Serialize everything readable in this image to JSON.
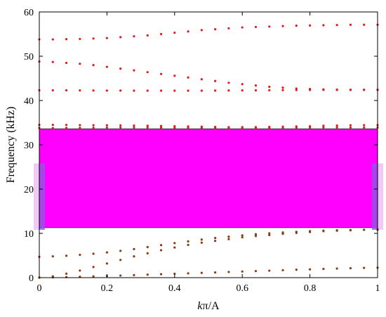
{
  "chart_data": {
    "type": "scatter",
    "xlabel_italic": "k",
    "xlabel_rest": "π/A",
    "ylabel": "Frequency (kHz)",
    "xlim": [
      0,
      1
    ],
    "ylim": [
      0,
      60
    ],
    "xticks": [
      "0",
      "0.2",
      "0.4",
      "0.6",
      "0.8",
      "1"
    ],
    "yticks": [
      "0",
      "10",
      "20",
      "30",
      "40",
      "50",
      "60"
    ],
    "grid": false,
    "band_gap": {
      "ymin": 11.3,
      "ymax": 33.6,
      "color": "#ff00ff"
    },
    "side_bands": {
      "ymin": 10.8,
      "ymax": 25.8,
      "color": "#e6a6f0",
      "edge_color": "#8a5ce6"
    },
    "x_samples": [
      0,
      0.04,
      0.08,
      0.12,
      0.16,
      0.2,
      0.24,
      0.28,
      0.32,
      0.36,
      0.4,
      0.44,
      0.48,
      0.52,
      0.56,
      0.6,
      0.64,
      0.68,
      0.72,
      0.76,
      0.8,
      0.84,
      0.88,
      0.92,
      0.96,
      1
    ],
    "series": [
      {
        "color": "#8b3a12",
        "values": [
          0,
          0.05,
          0.12,
          0.2,
          0.28,
          0.37,
          0.47,
          0.57,
          0.67,
          0.77,
          0.88,
          0.98,
          1.08,
          1.18,
          1.28,
          1.38,
          1.48,
          1.58,
          1.68,
          1.78,
          1.87,
          1.96,
          2.05,
          2.13,
          2.2,
          2.25
        ]
      },
      {
        "color": "#8b3a12",
        "values": [
          0,
          0.3,
          0.9,
          1.6,
          2.4,
          3.2,
          4.0,
          4.8,
          5.5,
          6.2,
          6.8,
          7.4,
          7.9,
          8.3,
          8.7,
          9.1,
          9.4,
          9.6,
          9.9,
          10.1,
          10.3,
          10.5,
          10.6,
          10.7,
          10.8,
          10.9
        ]
      },
      {
        "color": "#8b3a12",
        "values": [
          4.7,
          4.8,
          4.95,
          5.15,
          5.4,
          5.7,
          6.05,
          6.45,
          6.9,
          7.35,
          7.8,
          8.2,
          8.6,
          8.95,
          9.25,
          9.55,
          9.8,
          10.0,
          10.2,
          10.35,
          10.5,
          10.6,
          10.7,
          10.75,
          10.8,
          10.8
        ]
      },
      {
        "color": "#e31a1c",
        "values": [
          33.8,
          33.8,
          33.82,
          33.84,
          33.86,
          33.88,
          33.9,
          33.9,
          33.9,
          33.88,
          33.86,
          33.84,
          33.82,
          33.8,
          33.8,
          33.8,
          33.8,
          33.82,
          33.84,
          33.86,
          33.88,
          33.9,
          33.9,
          33.9,
          33.9,
          33.9
        ]
      },
      {
        "color": "#e31a1c",
        "values": [
          34.5,
          34.5,
          34.48,
          34.45,
          34.42,
          34.4,
          34.38,
          34.35,
          34.3,
          34.25,
          34.2,
          34.15,
          34.1,
          34.05,
          34.0,
          34.0,
          34.0,
          34.05,
          34.1,
          34.15,
          34.2,
          34.3,
          34.35,
          34.4,
          34.45,
          34.45
        ]
      },
      {
        "color": "#e31a1c",
        "values": [
          42.3,
          42.3,
          42.3,
          42.28,
          42.26,
          42.25,
          42.24,
          42.22,
          42.22,
          42.22,
          42.22,
          42.22,
          42.22,
          42.24,
          42.26,
          42.28,
          42.3,
          42.32,
          42.34,
          42.36,
          42.38,
          42.4,
          42.4,
          42.42,
          42.42,
          42.42
        ]
      },
      {
        "color": "#e31a1c",
        "values": [
          48.8,
          48.7,
          48.5,
          48.3,
          48.0,
          47.6,
          47.2,
          46.8,
          46.4,
          46.0,
          45.6,
          45.2,
          44.8,
          44.4,
          44.0,
          43.7,
          43.4,
          43.1,
          42.9,
          42.7,
          42.6,
          42.5,
          42.45,
          42.4,
          42.4,
          42.4
        ]
      },
      {
        "color": "#e31a1c",
        "values": [
          53.8,
          53.8,
          53.85,
          53.9,
          54.0,
          54.1,
          54.3,
          54.5,
          54.7,
          55.0,
          55.3,
          55.6,
          55.9,
          56.1,
          56.3,
          56.5,
          56.6,
          56.7,
          56.8,
          56.9,
          56.95,
          57.0,
          57.05,
          57.1,
          57.1,
          57.1
        ]
      }
    ]
  }
}
